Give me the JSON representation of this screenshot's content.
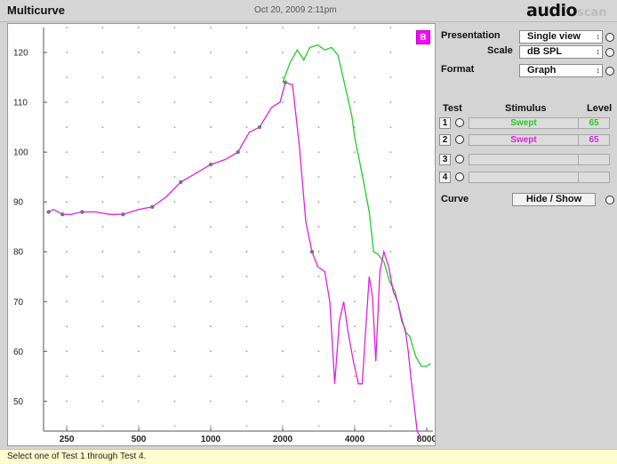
{
  "window": {
    "title": "Multicurve",
    "datetime": "Oct 20, 2009 2:11pm",
    "logo": "audio",
    "logo_faded": "scan"
  },
  "controls": {
    "badge": "B",
    "presentation_label": "Presentation",
    "presentation_value": "Single view",
    "scale_label": "Scale",
    "scale_value": "dB SPL",
    "format_label": "Format",
    "format_value": "Graph",
    "table_headers": {
      "test": "Test",
      "stimulus": "Stimulus",
      "level": "Level"
    },
    "tests": [
      {
        "number": "1",
        "stimulus": "Swept",
        "level": "65",
        "color": "#22cc22"
      },
      {
        "number": "2",
        "stimulus": "Swept",
        "level": "65",
        "color": "#dd22dd"
      },
      {
        "number": "3",
        "stimulus": "",
        "level": ""
      },
      {
        "number": "4",
        "stimulus": "",
        "level": ""
      }
    ],
    "curve_label": "Curve",
    "curve_button": "Hide / Show"
  },
  "status": {
    "message": "Select one of Test 1 through Test 4."
  },
  "chart_data": {
    "type": "line",
    "xscale": "log",
    "xlim": [
      200,
      8500
    ],
    "ylim": [
      44,
      125
    ],
    "xticks": [
      250,
      500,
      1000,
      2000,
      4000,
      8000
    ],
    "yticks": [
      50,
      60,
      70,
      80,
      90,
      100,
      110,
      120
    ],
    "grid": "dotted",
    "colors": {
      "test1": "#22cc22",
      "test2": "#dd22dd",
      "marker": "#777777"
    },
    "series": [
      {
        "x": [
          2000,
          2150,
          2300,
          2450,
          2600,
          2800,
          3000,
          3200,
          3400,
          3500,
          3700,
          3900,
          4000,
          4200,
          4400,
          4600,
          4800,
          5000,
          5300,
          5600,
          5900,
          6200,
          6500,
          6800,
          7200,
          7600,
          8000,
          8300
        ],
        "y": [
          114,
          118,
          120.5,
          118.5,
          121,
          121.5,
          120.5,
          121,
          119.5,
          117,
          112,
          107,
          103,
          98,
          93,
          88,
          80,
          79.5,
          78,
          74,
          72,
          68,
          64,
          63,
          59,
          57,
          57,
          57.5
        ]
      },
      {
        "x": [
          210,
          220,
          240,
          260,
          290,
          330,
          380,
          430,
          500,
          570,
          650,
          750,
          850,
          1000,
          1150,
          1300,
          1450,
          1600,
          1800,
          1950,
          2050,
          2200,
          2350,
          2500,
          2650,
          2800,
          3000,
          3150,
          3300,
          3450,
          3600,
          3750,
          3950,
          4150,
          4300,
          4500,
          4600,
          4750,
          4900,
          5100,
          5300,
          5550,
          5800,
          6050,
          6300,
          6500,
          6700,
          6900,
          7100,
          7300,
          7500
        ],
        "y": [
          88,
          88.5,
          87.5,
          87.5,
          88,
          88,
          87.5,
          87.5,
          88.5,
          89,
          91,
          94,
          95.5,
          97.5,
          98.5,
          100,
          104,
          105,
          109,
          110,
          114,
          113.5,
          101,
          86,
          80,
          77,
          76,
          70,
          53.5,
          66,
          70,
          64,
          58,
          53.5,
          53.5,
          68,
          75,
          71,
          58,
          76,
          80,
          77,
          72,
          70,
          66,
          64.5,
          60,
          54,
          49,
          44,
          43
        ]
      }
    ]
  }
}
